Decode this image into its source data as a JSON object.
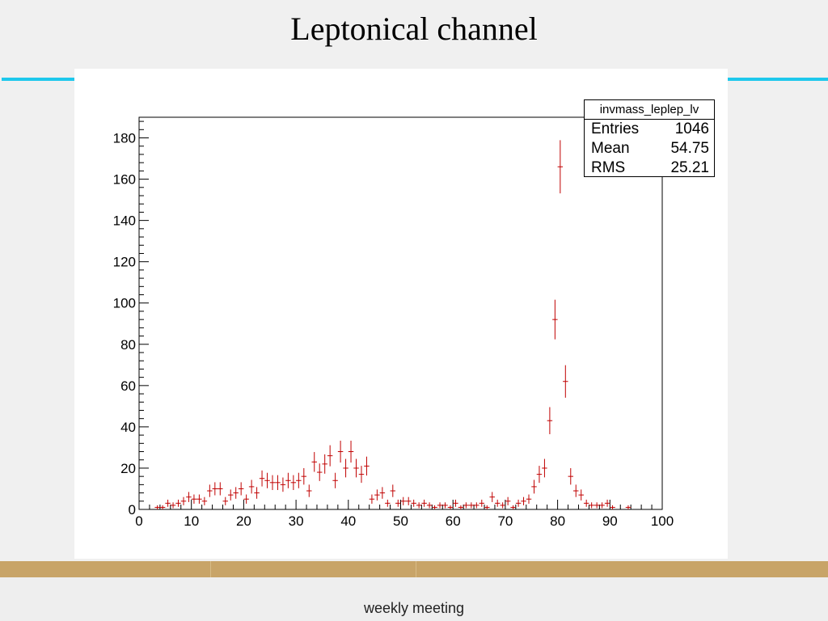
{
  "slide": {
    "title": "Leptonical channel",
    "footer": "weekly meeting"
  },
  "colors": {
    "accent": "#1ec8ec",
    "band": "#c8a468",
    "marker": "#c00000"
  },
  "stats": {
    "name": "invmass_leplep_lv",
    "rows": [
      {
        "label": "Entries",
        "value": "1046"
      },
      {
        "label": "Mean",
        "value": "54.75"
      },
      {
        "label": "RMS",
        "value": "25.21"
      }
    ]
  },
  "chart_data": {
    "type": "scatter",
    "title": "",
    "xlabel": "",
    "ylabel": "",
    "xlim": [
      0,
      100
    ],
    "ylim": [
      0,
      190
    ],
    "x_ticks": [
      0,
      10,
      20,
      30,
      40,
      50,
      60,
      70,
      80,
      90,
      100
    ],
    "y_ticks": [
      0,
      20,
      40,
      60,
      80,
      100,
      120,
      140,
      160,
      180
    ],
    "error_bars": "sqrt(N)",
    "x": [
      3.5,
      4.5,
      5.5,
      6.5,
      7.5,
      8.5,
      9.5,
      10.5,
      11.5,
      12.5,
      13.5,
      14.5,
      15.5,
      16.5,
      17.5,
      18.5,
      19.5,
      20.5,
      21.5,
      22.5,
      23.5,
      24.5,
      25.5,
      26.5,
      27.5,
      28.5,
      29.5,
      30.5,
      31.5,
      32.5,
      33.5,
      34.5,
      35.5,
      36.5,
      37.5,
      38.5,
      39.5,
      40.5,
      41.5,
      42.5,
      43.5,
      44.5,
      45.5,
      46.5,
      47.5,
      48.5,
      49.5,
      50.5,
      51.5,
      52.5,
      53.5,
      54.5,
      55.5,
      56.5,
      57.5,
      58.5,
      59.5,
      60.5,
      61.5,
      62.5,
      63.5,
      64.5,
      65.5,
      66.5,
      67.5,
      68.5,
      69.5,
      70.5,
      71.5,
      72.5,
      73.5,
      74.5,
      75.5,
      76.5,
      77.5,
      78.5,
      79.5,
      80.5,
      81.5,
      82.5,
      83.5,
      84.5,
      85.5,
      86.5,
      87.5,
      88.5,
      89.5,
      90.5,
      93.5
    ],
    "y": [
      1,
      1,
      3,
      2,
      3,
      4,
      6,
      5,
      5,
      4,
      9,
      10,
      10,
      4,
      7,
      8,
      10,
      5,
      11,
      8,
      15,
      14,
      13,
      13,
      12,
      14,
      13,
      14,
      16,
      9,
      23,
      18,
      22,
      26,
      14,
      28,
      20,
      28,
      20,
      17,
      21,
      5,
      7,
      8,
      3,
      9,
      3,
      4,
      4,
      3,
      2,
      3,
      2,
      1,
      2,
      2,
      1,
      3,
      1,
      2,
      2,
      2,
      3,
      1,
      6,
      3,
      2,
      4,
      1,
      3,
      4,
      5,
      11,
      17,
      20,
      43,
      92,
      166,
      62,
      16,
      9,
      7,
      3,
      2,
      2,
      2,
      3,
      1,
      1
    ]
  }
}
